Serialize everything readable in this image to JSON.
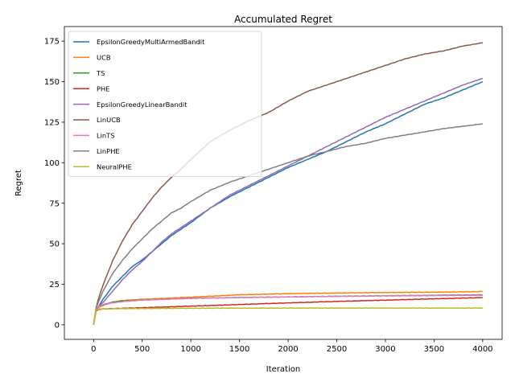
{
  "chart_data": {
    "type": "line",
    "title": "Accumulated Regret",
    "xlabel": "Iteration",
    "ylabel": "Regret",
    "xlim": [
      -300,
      4200
    ],
    "ylim": [
      -9,
      184
    ],
    "xticks": [
      0,
      500,
      1000,
      1500,
      2000,
      2500,
      3000,
      3500,
      4000
    ],
    "yticks": [
      0,
      25,
      50,
      75,
      100,
      125,
      150,
      175
    ],
    "grid": false,
    "legend_position": "top-left",
    "series": [
      {
        "name": "EpsilonGreedyMultiArmedBandit",
        "color": "#1f77b4",
        "x": [
          0,
          25,
          50,
          100,
          200,
          300,
          400,
          500,
          600,
          700,
          800,
          1000,
          1200,
          1400,
          1600,
          1800,
          2000,
          2200,
          2400,
          2600,
          2800,
          3000,
          3200,
          3400,
          3600,
          3800,
          4000
        ],
        "y": [
          0,
          9,
          11,
          16,
          24,
          30,
          36,
          40,
          45,
          50,
          55,
          63,
          72,
          79,
          85,
          91,
          97,
          102,
          107,
          113,
          119,
          124,
          130,
          136,
          140,
          145,
          150
        ]
      },
      {
        "name": "UCB",
        "color": "#ff7f0e",
        "x": [
          0,
          25,
          50,
          100,
          200,
          300,
          500,
          1000,
          1500,
          2000,
          2500,
          3000,
          3500,
          4000
        ],
        "y": [
          0,
          9,
          10.5,
          12,
          14,
          15,
          15.7,
          17,
          18.5,
          19.2,
          19.6,
          19.9,
          20.1,
          20.5
        ]
      },
      {
        "name": "TS",
        "color": "#2ca02c",
        "x": [
          0,
          25,
          50,
          100,
          200,
          300,
          500,
          1000,
          1500,
          2000,
          2500,
          3000,
          3500,
          4000
        ],
        "y": [
          0,
          9,
          11,
          12.5,
          14,
          14.7,
          15.3,
          16.3,
          16.8,
          17.2,
          17.6,
          17.9,
          18.2,
          18.5
        ]
      },
      {
        "name": "PHE",
        "color": "#d62728",
        "x": [
          0,
          25,
          50,
          100,
          200,
          500,
          1000,
          1500,
          2000,
          2500,
          3000,
          3500,
          4000
        ],
        "y": [
          0,
          8.5,
          9.5,
          9.8,
          10,
          10.5,
          11.5,
          12.5,
          13.5,
          14.4,
          15.2,
          16,
          16.8
        ]
      },
      {
        "name": "EpsilonGreedyLinearBandit",
        "color": "#9467bd",
        "x": [
          0,
          25,
          50,
          100,
          200,
          300,
          400,
          500,
          600,
          700,
          800,
          1000,
          1200,
          1400,
          1600,
          1800,
          2000,
          2200,
          2400,
          2600,
          2800,
          3000,
          3200,
          3400,
          3600,
          3800,
          4000
        ],
        "y": [
          0,
          9,
          11,
          14,
          21,
          28,
          34,
          39,
          45,
          51,
          56,
          64,
          72,
          80,
          86,
          92,
          98,
          104,
          110,
          116,
          122,
          128,
          133,
          138,
          143,
          148,
          152
        ]
      },
      {
        "name": "LinUCB",
        "color": "#8c564b",
        "x": [
          0,
          25,
          50,
          100,
          200,
          300,
          400,
          500,
          600,
          700,
          800,
          900,
          1000,
          1200,
          1400,
          1600,
          1800,
          2000,
          2200,
          2400,
          2600,
          2800,
          3000,
          3200,
          3400,
          3600,
          3800,
          4000
        ],
        "y": [
          0,
          10,
          16,
          25,
          40,
          52,
          62,
          70,
          78,
          85,
          91,
          96,
          102,
          113,
          120,
          126,
          131,
          138,
          144,
          148,
          152,
          156,
          160,
          164,
          167,
          169,
          172,
          174
        ]
      },
      {
        "name": "LinTS",
        "color": "#e377c2",
        "x": [
          0,
          25,
          50,
          100,
          200,
          300,
          500,
          1000,
          1500,
          2000,
          2500,
          3000,
          3500,
          4000
        ],
        "y": [
          0,
          9,
          11,
          12.5,
          13.5,
          14.3,
          15.2,
          16.3,
          16.8,
          17.2,
          17.5,
          17.8,
          18,
          18.2
        ]
      },
      {
        "name": "LinPHE",
        "color": "#7f7f7f",
        "x": [
          0,
          25,
          50,
          100,
          200,
          300,
          400,
          500,
          600,
          700,
          800,
          900,
          1000,
          1200,
          1400,
          1600,
          1800,
          2000,
          2200,
          2400,
          2600,
          2800,
          3000,
          3200,
          3400,
          3600,
          3800,
          4000
        ],
        "y": [
          0,
          10,
          14,
          21,
          32,
          40,
          47,
          53,
          59,
          64,
          69,
          72,
          76,
          83,
          88,
          92,
          96,
          100,
          104,
          107,
          110,
          112,
          115,
          117,
          119,
          121,
          122.5,
          124
        ]
      },
      {
        "name": "NeuralPHE",
        "color": "#bcbd22",
        "x": [
          0,
          25,
          50,
          100,
          200,
          500,
          1000,
          2000,
          3000,
          4000
        ],
        "y": [
          0,
          9.2,
          9.7,
          9.8,
          9.9,
          10,
          10.2,
          10.3,
          10.3,
          10.3
        ]
      }
    ]
  }
}
